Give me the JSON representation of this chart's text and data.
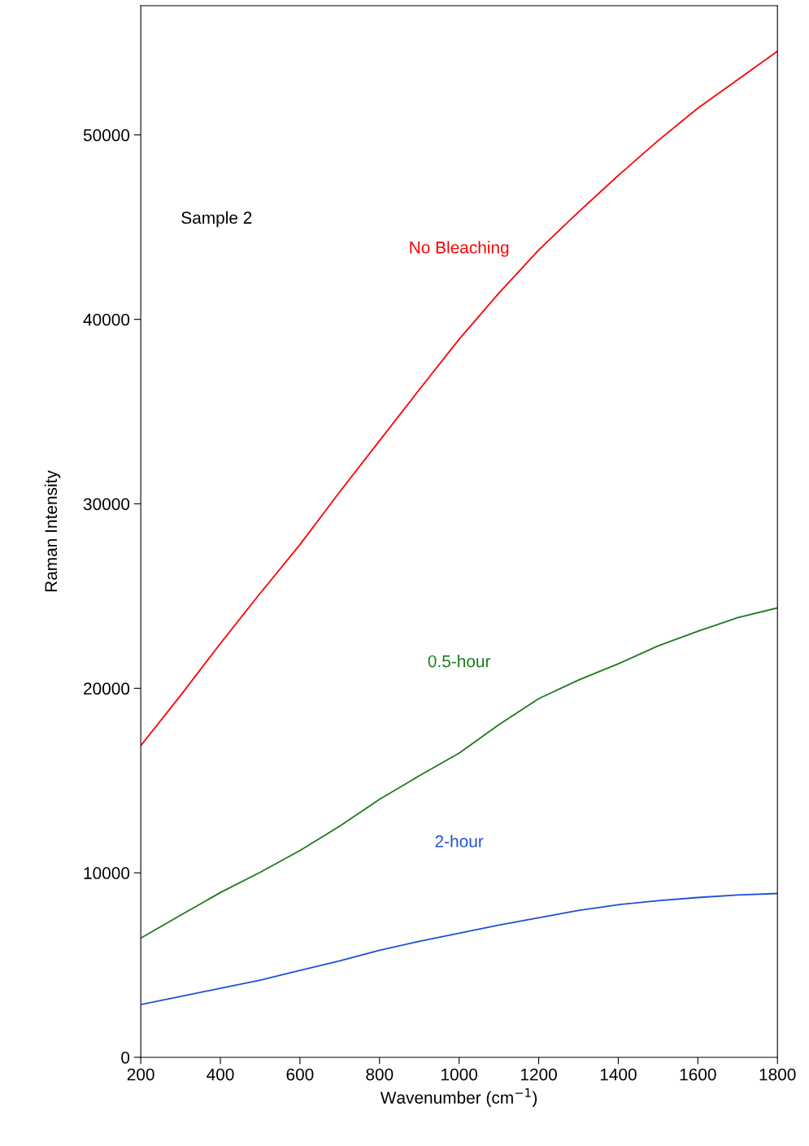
{
  "chart_data": {
    "type": "line",
    "xlabel": "Wavenumber (cm$^{−1}$)",
    "ylabel": "Raman Intensity",
    "x": [
      200,
      300,
      400,
      500,
      600,
      700,
      800,
      900,
      1000,
      1100,
      1200,
      1300,
      1400,
      1500,
      1600,
      1700,
      1800
    ],
    "series": [
      {
        "name": "No Bleaching",
        "color": "#ff0000",
        "values": [
          16890,
          19610,
          22430,
          25150,
          27790,
          30650,
          33420,
          36190,
          38920,
          41420,
          43760,
          45820,
          47800,
          49690,
          51450,
          52990,
          54530
        ]
      },
      {
        "name": "0.5-hour",
        "color": "#1e7a1e",
        "values": [
          6460,
          7700,
          8930,
          10030,
          11210,
          12530,
          13980,
          15260,
          16490,
          18030,
          19440,
          20450,
          21330,
          22300,
          23090,
          23830,
          24360
        ]
      },
      {
        "name": "2-hour",
        "color": "#1f4fd6",
        "values": [
          2860,
          3300,
          3740,
          4180,
          4710,
          5230,
          5800,
          6290,
          6730,
          7170,
          7560,
          7960,
          8270,
          8490,
          8660,
          8800,
          8880
        ]
      }
    ],
    "annotations": [
      "Sample 2"
    ],
    "xlim": [
      200,
      1800
    ],
    "ylim": [
      0,
      57000
    ],
    "xticks": [
      200,
      400,
      600,
      800,
      1000,
      1200,
      1400,
      1600,
      1800
    ],
    "yticks": [
      0,
      10000,
      20000,
      30000,
      40000,
      50000
    ],
    "grid": false,
    "legend": false,
    "marker": "none",
    "line_style": "solid"
  }
}
